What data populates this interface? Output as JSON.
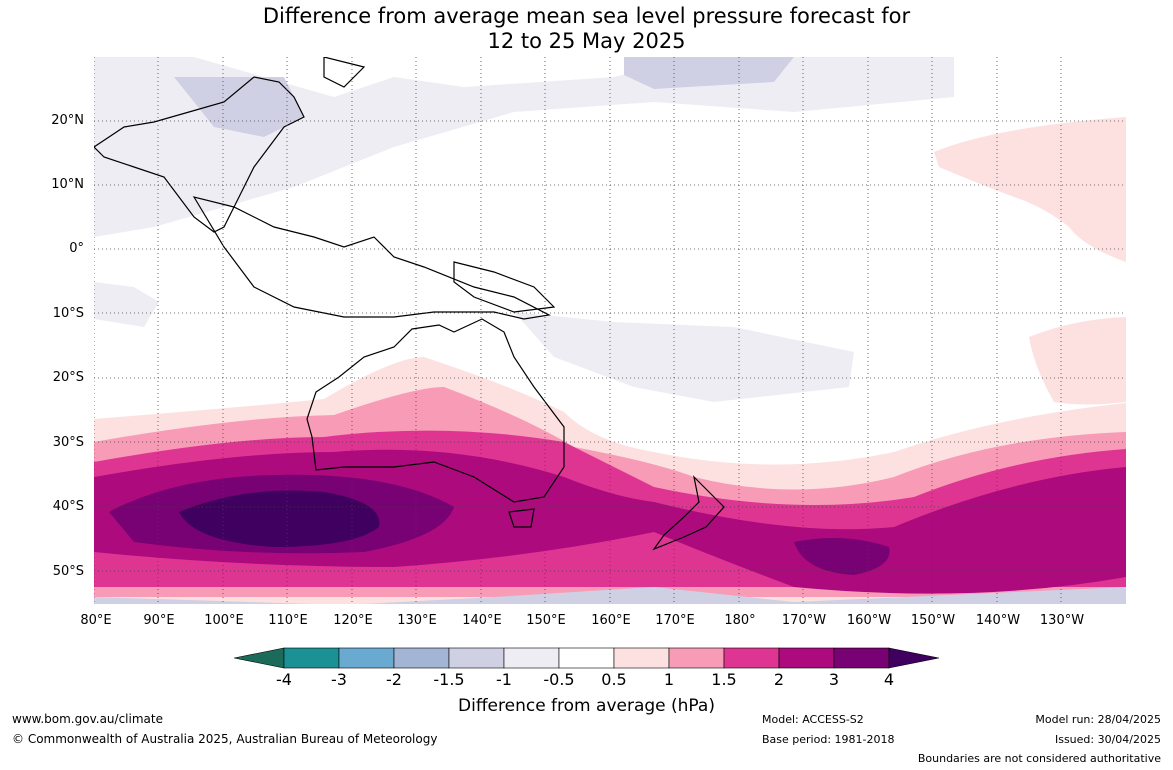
{
  "title_line1": "Difference from average mean sea level pressure forecast for",
  "title_line2": "12 to 25 May 2025",
  "lat_labels": [
    "20°N",
    "10°N",
    "0°",
    "10°S",
    "20°S",
    "30°S",
    "40°S",
    "50°S"
  ],
  "lon_labels": [
    "80°E",
    "90°E",
    "100°E",
    "110°E",
    "120°E",
    "130°E",
    "140°E",
    "150°E",
    "160°E",
    "170°E",
    "180°",
    "170°W",
    "160°W",
    "150°W",
    "140°W",
    "130°W"
  ],
  "colorbar": {
    "label": "Difference from average (hPa)",
    "ticks": [
      "-4",
      "-3",
      "-2",
      "-1.5",
      "-1",
      "-0.5",
      "0.5",
      "1",
      "1.5",
      "2",
      "3",
      "4"
    ],
    "colors": [
      "#1a6b5a",
      "#1b9196",
      "#6aaad1",
      "#a3b5d4",
      "#d0d0e4",
      "#efedf4",
      "#ffffff",
      "#fde1e1",
      "#f79bb6",
      "#de3592",
      "#ad0a7e",
      "#780273",
      "#400060"
    ]
  },
  "footer": {
    "url": "www.bom.gov.au/climate",
    "copyright": "© Commonwealth of Australia 2025, Australian Bureau of Meteorology",
    "model": "Model: ACCESS-S2",
    "base_period": "Base period: 1981-2018",
    "model_run": "Model run: 28/04/2025",
    "issued": "Issued: 30/04/2025",
    "disclaimer": "Boundaries are not considered authoritative"
  }
}
